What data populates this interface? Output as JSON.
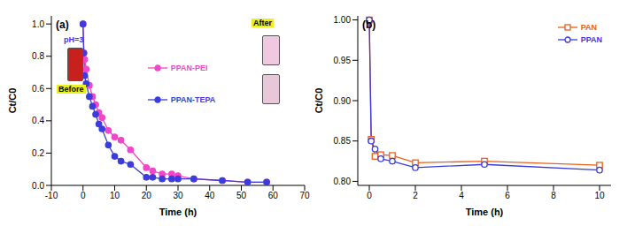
{
  "chart_data": [
    {
      "type": "line",
      "panel": "(a)",
      "x_label": "Time (h)",
      "y_label": "Ct/C0",
      "annotations": [
        "pH=3",
        "Before",
        "After"
      ],
      "xlim": [
        -10,
        70
      ],
      "xticks": [
        -10,
        0,
        10,
        20,
        30,
        40,
        50,
        60,
        70
      ],
      "ylim": [
        0,
        1.05
      ],
      "yticks": [
        {
          "value": 0,
          "label": "0.0"
        },
        {
          "value": 0.2,
          "label": "0.2"
        },
        {
          "value": 0.4,
          "label": "0.4"
        },
        {
          "value": 0.6,
          "label": "0.6"
        },
        {
          "value": 0.8,
          "label": "0.8"
        },
        {
          "value": 1,
          "label": "1.0"
        }
      ],
      "legend": "right",
      "grid": false,
      "series": [
        {
          "name": "PPAN-PEI",
          "color": "#f046c8",
          "marker": "circle",
          "x": [
            0,
            0.25,
            0.5,
            1,
            2,
            3,
            4,
            5,
            6,
            8,
            10,
            12,
            15,
            20,
            22,
            25,
            28,
            30,
            35,
            44,
            52,
            58
          ],
          "values": [
            1.0,
            0.82,
            0.78,
            0.72,
            0.62,
            0.55,
            0.5,
            0.45,
            0.42,
            0.34,
            0.3,
            0.28,
            0.22,
            0.11,
            0.09,
            0.07,
            0.07,
            0.06,
            0.04,
            0.03,
            0.02,
            0.02
          ]
        },
        {
          "name": "PPAN-TEPA",
          "color": "#3c3cdc",
          "marker": "circle",
          "x": [
            0,
            0.25,
            0.5,
            1,
            2,
            3,
            4,
            5,
            6,
            8,
            10,
            12,
            15,
            20,
            22,
            25,
            28,
            30,
            35,
            44,
            52,
            58
          ],
          "values": [
            1.0,
            0.82,
            0.68,
            0.63,
            0.55,
            0.49,
            0.44,
            0.38,
            0.35,
            0.25,
            0.18,
            0.15,
            0.13,
            0.05,
            0.05,
            0.04,
            0.04,
            0.04,
            0.04,
            0.03,
            0.02,
            0.02
          ]
        }
      ]
    },
    {
      "type": "line",
      "panel": "(b)",
      "x_label": "Time (h)",
      "y_label": "Ct/C0",
      "annotations": [],
      "xlim": [
        -0.5,
        10.5
      ],
      "xticks": [
        0,
        2,
        4,
        6,
        8,
        10
      ],
      "ylim": [
        0.795,
        1.005
      ],
      "yticks": [
        {
          "value": 0.8,
          "label": "0.80"
        },
        {
          "value": 0.85,
          "label": "0.85"
        },
        {
          "value": 0.9,
          "label": "0.90"
        },
        {
          "value": 0.95,
          "label": "0.95"
        },
        {
          "value": 1,
          "label": "1.00"
        }
      ],
      "legend": "upper right",
      "grid": false,
      "series": [
        {
          "name": "PAN",
          "color": "#e8601c",
          "marker": "open_square",
          "x": [
            0,
            0.083,
            0.25,
            0.5,
            1,
            2,
            5,
            10
          ],
          "values": [
            1.0,
            0.852,
            0.831,
            0.833,
            0.832,
            0.823,
            0.825,
            0.82
          ]
        },
        {
          "name": "PPAN",
          "color": "#3a3adc",
          "marker": "open_circle",
          "x": [
            0,
            0.083,
            0.25,
            0.5,
            1,
            2,
            5,
            10
          ],
          "values": [
            1.0,
            0.85,
            0.84,
            0.828,
            0.825,
            0.817,
            0.821,
            0.814
          ]
        }
      ]
    }
  ]
}
